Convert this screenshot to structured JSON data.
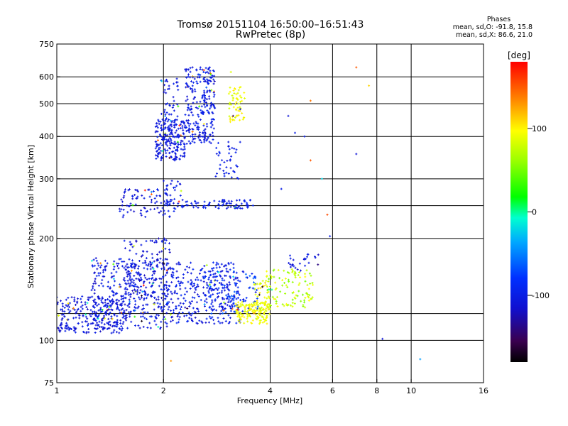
{
  "header": {
    "title": "Tromsø 20151104 16:50:00–16:51:43",
    "subtitle": "RwPretec (8p)"
  },
  "phase_box": {
    "title": "Phases",
    "line_o": "mean, sd,O: -91.8, 15.8",
    "line_x": "mean, sd,X: 86.6, 21.0"
  },
  "colorbar": {
    "label": "[deg]",
    "range": [
      -180,
      180
    ],
    "ticks": [
      {
        "value": 100,
        "label": "100"
      },
      {
        "value": 0,
        "label": "0"
      },
      {
        "value": -100,
        "label": "-100"
      }
    ]
  },
  "chart_data": {
    "type": "scatter",
    "xlabel": "Frequency [MHz]",
    "ylabel": "Stationary phase Virtual Height [km]",
    "xscale": "log",
    "yscale": "log",
    "xlim": [
      1,
      16
    ],
    "ylim": [
      75,
      750
    ],
    "xticks": [
      {
        "value": 1,
        "label": "1"
      },
      {
        "value": 2,
        "label": "2"
      },
      {
        "value": 4,
        "label": "4"
      },
      {
        "value": 6,
        "label": "6"
      },
      {
        "value": 8,
        "label": "8"
      },
      {
        "value": 10,
        "label": "10"
      },
      {
        "value": 16,
        "label": "16"
      }
    ],
    "xgrid": [
      2,
      4,
      6,
      8,
      10
    ],
    "yticks": [
      {
        "value": 75,
        "label": "75"
      },
      {
        "value": 100,
        "label": "100"
      },
      {
        "value": 200,
        "label": "200"
      },
      {
        "value": 300,
        "label": "300"
      },
      {
        "value": 400,
        "label": "400"
      },
      {
        "value": 500,
        "label": "500"
      },
      {
        "value": 600,
        "label": "600"
      },
      {
        "value": 750,
        "label": "750"
      }
    ],
    "ygrid": [
      100,
      120,
      200,
      250,
      300,
      400,
      500,
      600
    ],
    "clusters": [
      {
        "x": [
          1.0,
          1.55
        ],
        "y": [
          105,
          135
        ],
        "phase": [
          -120,
          -95
        ],
        "n": 260
      },
      {
        "x": [
          1.25,
          2.05
        ],
        "y": [
          108,
          175
        ],
        "phase": [
          -120,
          -90
        ],
        "n": 330
      },
      {
        "x": [
          1.55,
          2.1
        ],
        "y": [
          118,
          200
        ],
        "phase": [
          -125,
          -95
        ],
        "n": 160
      },
      {
        "x": [
          2.0,
          3.3
        ],
        "y": [
          112,
          170
        ],
        "phase": [
          -120,
          -85
        ],
        "n": 330
      },
      {
        "x": [
          2.6,
          3.7
        ],
        "y": [
          120,
          160
        ],
        "phase": [
          -110,
          -60
        ],
        "n": 100
      },
      {
        "x": [
          3.2,
          4.0
        ],
        "y": [
          112,
          130
        ],
        "phase": [
          80,
          105
        ],
        "n": 140
      },
      {
        "x": [
          3.6,
          4.0
        ],
        "y": [
          120,
          150
        ],
        "phase": [
          70,
          110
        ],
        "n": 50
      },
      {
        "x": [
          3.9,
          5.3
        ],
        "y": [
          125,
          165
        ],
        "phase": [
          50,
          100
        ],
        "n": 100
      },
      {
        "x": [
          4.5,
          5.5
        ],
        "y": [
          160,
          180
        ],
        "phase": [
          -115,
          -95
        ],
        "n": 25
      },
      {
        "x": [
          1.5,
          2.1
        ],
        "y": [
          230,
          280
        ],
        "phase": [
          -120,
          -95
        ],
        "n": 80
      },
      {
        "x": [
          2.0,
          2.25
        ],
        "y": [
          240,
          300
        ],
        "phase": [
          -115,
          -90
        ],
        "n": 40
      },
      {
        "x": [
          2.25,
          3.6
        ],
        "y": [
          245,
          260
        ],
        "phase": [
          -110,
          -90
        ],
        "n": 80
      },
      {
        "x": [
          1.9,
          2.3
        ],
        "y": [
          340,
          450
        ],
        "phase": [
          -115,
          -95
        ],
        "n": 220
      },
      {
        "x": [
          1.95,
          2.2
        ],
        "y": [
          450,
          600
        ],
        "phase": [
          -115,
          -95
        ],
        "n": 40
      },
      {
        "x": [
          2.3,
          2.8
        ],
        "y": [
          380,
          640
        ],
        "phase": [
          -115,
          -90
        ],
        "n": 260
      },
      {
        "x": [
          2.8,
          3.3
        ],
        "y": [
          300,
          390
        ],
        "phase": [
          -110,
          -90
        ],
        "n": 40
      },
      {
        "x": [
          3.05,
          3.4
        ],
        "y": [
          440,
          560
        ],
        "phase": [
          80,
          105
        ],
        "n": 60
      }
    ],
    "points": [
      {
        "x": 3.1,
        "y": 620,
        "phase": 85
      },
      {
        "x": 4.3,
        "y": 280,
        "phase": -100
      },
      {
        "x": 4.5,
        "y": 460,
        "phase": -110
      },
      {
        "x": 4.7,
        "y": 410,
        "phase": -100
      },
      {
        "x": 5.0,
        "y": 400,
        "phase": -100
      },
      {
        "x": 5.2,
        "y": 340,
        "phase": 150
      },
      {
        "x": 5.2,
        "y": 510,
        "phase": 140
      },
      {
        "x": 5.6,
        "y": 300,
        "phase": -20
      },
      {
        "x": 5.8,
        "y": 235,
        "phase": 155
      },
      {
        "x": 5.9,
        "y": 203,
        "phase": -100
      },
      {
        "x": 7.0,
        "y": 640,
        "phase": 150
      },
      {
        "x": 7.0,
        "y": 355,
        "phase": -110
      },
      {
        "x": 7.6,
        "y": 565,
        "phase": 110
      },
      {
        "x": 8.3,
        "y": 101,
        "phase": -110
      },
      {
        "x": 10.6,
        "y": 88,
        "phase": -40
      },
      {
        "x": 2.1,
        "y": 87,
        "phase": 130
      },
      {
        "x": 1.93,
        "y": 390,
        "phase": 150
      },
      {
        "x": 1.85,
        "y": 270,
        "phase": 150
      }
    ]
  }
}
